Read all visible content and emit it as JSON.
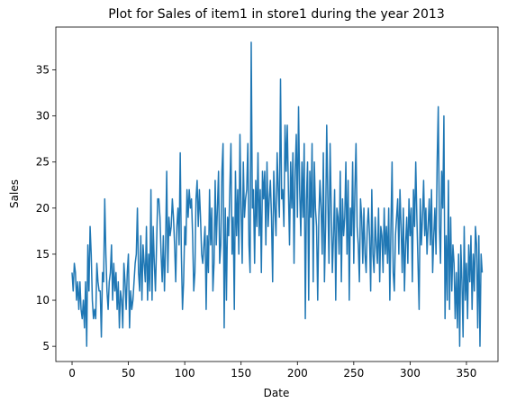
{
  "chart_data": {
    "type": "line",
    "title": "Plot for Sales of item1 in store1 during the year 2013",
    "xlabel": "Date",
    "ylabel": "Sales",
    "color": "#1f77b4",
    "xlim": [
      -14.4,
      378
    ],
    "ylim": [
      3.35,
      39.65
    ],
    "xticks": [
      0,
      50,
      100,
      150,
      200,
      250,
      300,
      350
    ],
    "yticks": [
      5,
      10,
      15,
      20,
      25,
      30,
      35
    ],
    "x": [
      0,
      1,
      2,
      3,
      4,
      5,
      6,
      7,
      8,
      9,
      10,
      11,
      12,
      13,
      14,
      15,
      16,
      17,
      18,
      19,
      20,
      21,
      22,
      23,
      24,
      25,
      26,
      27,
      28,
      29,
      30,
      31,
      32,
      33,
      34,
      35,
      36,
      37,
      38,
      39,
      40,
      41,
      42,
      43,
      44,
      45,
      46,
      47,
      48,
      49,
      50,
      51,
      52,
      53,
      54,
      55,
      56,
      57,
      58,
      59,
      60,
      61,
      62,
      63,
      64,
      65,
      66,
      67,
      68,
      69,
      70,
      71,
      72,
      73,
      74,
      75,
      76,
      77,
      78,
      79,
      80,
      81,
      82,
      83,
      84,
      85,
      86,
      87,
      88,
      89,
      90,
      91,
      92,
      93,
      94,
      95,
      96,
      97,
      98,
      99,
      100,
      101,
      102,
      103,
      104,
      105,
      106,
      107,
      108,
      109,
      110,
      111,
      112,
      113,
      114,
      115,
      116,
      117,
      118,
      119,
      120,
      121,
      122,
      123,
      124,
      125,
      126,
      127,
      128,
      129,
      130,
      131,
      132,
      133,
      134,
      135,
      136,
      137,
      138,
      139,
      140,
      141,
      142,
      143,
      144,
      145,
      146,
      147,
      148,
      149,
      150,
      151,
      152,
      153,
      154,
      155,
      156,
      157,
      158,
      159,
      160,
      161,
      162,
      163,
      164,
      165,
      166,
      167,
      168,
      169,
      170,
      171,
      172,
      173,
      174,
      175,
      176,
      177,
      178,
      179,
      180,
      181,
      182,
      183,
      184,
      185,
      186,
      187,
      188,
      189,
      190,
      191,
      192,
      193,
      194,
      195,
      196,
      197,
      198,
      199,
      200,
      201,
      202,
      203,
      204,
      205,
      206,
      207,
      208,
      209,
      210,
      211,
      212,
      213,
      214,
      215,
      216,
      217,
      218,
      219,
      220,
      221,
      222,
      223,
      224,
      225,
      226,
      227,
      228,
      229,
      230,
      231,
      232,
      233,
      234,
      235,
      236,
      237,
      238,
      239,
      240,
      241,
      242,
      243,
      244,
      245,
      246,
      247,
      248,
      249,
      250,
      251,
      252,
      253,
      254,
      255,
      256,
      257,
      258,
      259,
      260,
      261,
      262,
      263,
      264,
      265,
      266,
      267,
      268,
      269,
      270,
      271,
      272,
      273,
      274,
      275,
      276,
      277,
      278,
      279,
      280,
      281,
      282,
      283,
      284,
      285,
      286,
      287,
      288,
      289,
      290,
      291,
      292,
      293,
      294,
      295,
      296,
      297,
      298,
      299,
      300,
      301,
      302,
      303,
      304,
      305,
      306,
      307,
      308,
      309,
      310,
      311,
      312,
      313,
      314,
      315,
      316,
      317,
      318,
      319,
      320,
      321,
      322,
      323,
      324,
      325,
      326,
      327,
      328,
      329,
      330,
      331,
      332,
      333,
      334,
      335,
      336,
      337,
      338,
      339,
      340,
      341,
      342,
      343,
      344,
      345,
      346,
      347,
      348,
      349,
      350,
      351,
      352,
      353,
      354,
      355,
      356,
      357,
      358,
      359,
      360,
      361,
      362,
      363,
      364
    ],
    "values": [
      13,
      11,
      14,
      13,
      10,
      12,
      9,
      12,
      9,
      8,
      10,
      7,
      12,
      5,
      16,
      11,
      18,
      15,
      10,
      8,
      9,
      8,
      14,
      12,
      11,
      11,
      6,
      13,
      12,
      21,
      15,
      11,
      9,
      12,
      13,
      16,
      10,
      14,
      11,
      13,
      9,
      12,
      7,
      11,
      10,
      7,
      14,
      12,
      9,
      13,
      15,
      7,
      11,
      9,
      10,
      12,
      14,
      15,
      20,
      13,
      11,
      17,
      10,
      16,
      14,
      12,
      18,
      10,
      15,
      11,
      22,
      10,
      18,
      14,
      11,
      16,
      21,
      21,
      19,
      15,
      12,
      17,
      11,
      16,
      24,
      13,
      19,
      17,
      18,
      21,
      19,
      16,
      12,
      18,
      20,
      16,
      26,
      15,
      9,
      12,
      18,
      16,
      22,
      19,
      22,
      20,
      21,
      17,
      11,
      13,
      21,
      23,
      18,
      22,
      19,
      15,
      14,
      16,
      18,
      9,
      17,
      13,
      22,
      16,
      20,
      11,
      14,
      23,
      16,
      20,
      24,
      14,
      16,
      24,
      27,
      7,
      20,
      10,
      19,
      17,
      22,
      27,
      15,
      19,
      9,
      24,
      17,
      22,
      15,
      28,
      20,
      14,
      25,
      19,
      21,
      22,
      27,
      16,
      13,
      38,
      20,
      22,
      14,
      23,
      18,
      26,
      17,
      22,
      13,
      24,
      21,
      24,
      16,
      25,
      18,
      21,
      23,
      19,
      12,
      24,
      20,
      17,
      26,
      22,
      19,
      34,
      21,
      22,
      18,
      29,
      24,
      29,
      22,
      16,
      25,
      20,
      26,
      14,
      24,
      28,
      19,
      31,
      22,
      17,
      25,
      19,
      27,
      8,
      21,
      25,
      10,
      24,
      19,
      27,
      12,
      25,
      20,
      18,
      10,
      19,
      23,
      20,
      15,
      26,
      12,
      18,
      29,
      21,
      14,
      27,
      20,
      13,
      17,
      22,
      10,
      20,
      19,
      15,
      24,
      12,
      21,
      17,
      19,
      25,
      15,
      23,
      10,
      20,
      17,
      25,
      14,
      22,
      27,
      18,
      16,
      12,
      21,
      19,
      14,
      20,
      15,
      13,
      18,
      20,
      17,
      11,
      22,
      15,
      13,
      19,
      16,
      14,
      20,
      12,
      18,
      17,
      13,
      20,
      15,
      18,
      14,
      20,
      10,
      18,
      25,
      13,
      11,
      17,
      19,
      21,
      15,
      22,
      18,
      13,
      20,
      11,
      16,
      19,
      14,
      21,
      17,
      20,
      12,
      22,
      18,
      25,
      19,
      14,
      9,
      21,
      16,
      19,
      23,
      17,
      20,
      15,
      18,
      21,
      16,
      22,
      13,
      17,
      20,
      15,
      25,
      31,
      18,
      14,
      24,
      20,
      30,
      8,
      17,
      10,
      23,
      9,
      19,
      11,
      16,
      14,
      8,
      13,
      7,
      15,
      5,
      16,
      12,
      6,
      18,
      10,
      14,
      8,
      16,
      12,
      17,
      9,
      15,
      11,
      18,
      16,
      7,
      17,
      5,
      15,
      13
    ]
  }
}
